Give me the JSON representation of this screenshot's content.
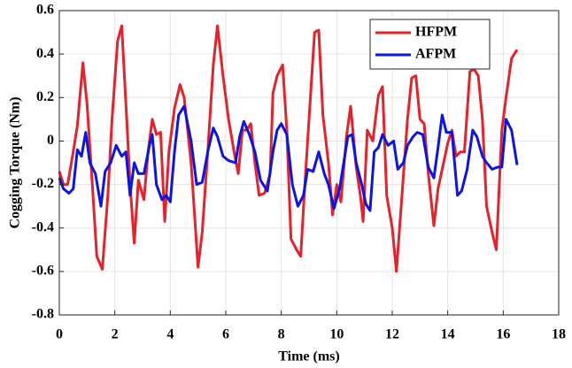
{
  "chart_data": {
    "type": "line",
    "xlabel": "Time (ms)",
    "ylabel": "Cogging Torque (Nm)",
    "xlim": [
      0,
      18
    ],
    "ylim": [
      -0.8,
      0.6
    ],
    "xticks": [
      0,
      2,
      4,
      6,
      8,
      10,
      12,
      14,
      16,
      18
    ],
    "yticks": [
      -0.8,
      -0.6,
      -0.4,
      -0.2,
      0,
      0.2,
      0.4,
      0.6
    ],
    "grid": true,
    "legend": "northeast",
    "series": [
      {
        "name": "HFPM",
        "color": "#e8202a",
        "x": [
          0,
          0.15,
          0.3,
          0.5,
          0.65,
          0.85,
          1.0,
          1.2,
          1.35,
          1.55,
          1.75,
          1.9,
          2.1,
          2.25,
          2.45,
          2.55,
          2.7,
          2.85,
          3.05,
          3.2,
          3.35,
          3.5,
          3.65,
          3.8,
          3.95,
          4.15,
          4.35,
          4.5,
          4.75,
          5.0,
          5.15,
          5.35,
          5.55,
          5.7,
          5.9,
          6.1,
          6.3,
          6.45,
          6.6,
          6.75,
          6.9,
          7.05,
          7.2,
          7.4,
          7.6,
          7.7,
          7.85,
          8.05,
          8.2,
          8.35,
          8.55,
          8.7,
          8.85,
          9.0,
          9.2,
          9.35,
          9.5,
          9.7,
          9.85,
          10.0,
          10.15,
          10.35,
          10.5,
          10.7,
          10.85,
          10.95,
          11.1,
          11.3,
          11.5,
          11.65,
          11.8,
          12.0,
          12.15,
          12.35,
          12.55,
          12.7,
          12.85,
          13.0,
          13.15,
          13.3,
          13.5,
          13.65,
          13.85,
          14.0,
          14.15,
          14.3,
          14.45,
          14.6,
          14.8,
          14.95,
          15.1,
          15.25,
          15.4,
          15.6,
          15.75,
          15.95,
          16.1,
          16.3,
          16.5
        ],
        "values": [
          -0.14,
          -0.2,
          -0.2,
          -0.05,
          0.07,
          0.36,
          0.17,
          -0.22,
          -0.53,
          -0.59,
          -0.25,
          0.1,
          0.46,
          0.53,
          0.05,
          -0.2,
          -0.47,
          -0.18,
          -0.27,
          -0.05,
          0.1,
          0.03,
          0.04,
          -0.37,
          -0.05,
          0.15,
          0.26,
          0.2,
          -0.1,
          -0.58,
          -0.42,
          -0.05,
          0.35,
          0.53,
          0.3,
          0.1,
          -0.05,
          -0.15,
          0.05,
          0.05,
          0.08,
          -0.1,
          -0.25,
          -0.24,
          -0.15,
          0.22,
          0.3,
          0.35,
          0.05,
          -0.45,
          -0.5,
          -0.53,
          -0.2,
          0.1,
          0.5,
          0.51,
          0.12,
          -0.1,
          -0.34,
          -0.2,
          -0.28,
          0.02,
          0.16,
          -0.12,
          -0.25,
          -0.37,
          0.05,
          0.0,
          0.21,
          0.25,
          -0.25,
          -0.4,
          -0.6,
          -0.25,
          0.1,
          0.29,
          0.3,
          0.1,
          0.08,
          -0.15,
          -0.39,
          -0.22,
          -0.1,
          -0.01,
          0.05,
          -0.07,
          -0.05,
          -0.05,
          0.32,
          0.33,
          0.3,
          0.1,
          -0.3,
          -0.42,
          -0.5,
          0.05,
          0.2,
          0.38,
          0.42
        ]
      },
      {
        "name": "AFPM",
        "color": "#0a14e6",
        "x": [
          0,
          0.15,
          0.35,
          0.5,
          0.65,
          0.8,
          0.95,
          1.1,
          1.3,
          1.5,
          1.65,
          1.85,
          2.05,
          2.25,
          2.4,
          2.55,
          2.7,
          2.85,
          3.05,
          3.25,
          3.35,
          3.5,
          3.7,
          3.85,
          4.0,
          4.15,
          4.3,
          4.5,
          4.75,
          4.95,
          5.15,
          5.35,
          5.55,
          5.7,
          5.9,
          6.1,
          6.35,
          6.5,
          6.65,
          6.85,
          7.05,
          7.25,
          7.5,
          7.7,
          7.85,
          8.0,
          8.2,
          8.4,
          8.6,
          8.8,
          8.95,
          9.15,
          9.35,
          9.55,
          9.7,
          9.9,
          10.1,
          10.25,
          10.4,
          10.55,
          10.7,
          10.9,
          11.05,
          11.2,
          11.35,
          11.5,
          11.65,
          11.85,
          12.05,
          12.2,
          12.4,
          12.55,
          12.75,
          12.9,
          13.1,
          13.3,
          13.5,
          13.65,
          13.8,
          13.95,
          14.15,
          14.35,
          14.5,
          14.7,
          14.9,
          15.05,
          15.25,
          15.4,
          15.6,
          15.8,
          15.95,
          16.1,
          16.3,
          16.5
        ],
        "values": [
          -0.17,
          -0.22,
          -0.24,
          -0.22,
          -0.04,
          -0.07,
          0.04,
          -0.1,
          -0.15,
          -0.3,
          -0.14,
          -0.1,
          -0.02,
          -0.07,
          -0.05,
          -0.25,
          -0.1,
          -0.15,
          -0.15,
          -0.02,
          0.03,
          -0.2,
          -0.27,
          -0.25,
          -0.28,
          -0.05,
          0.12,
          0.16,
          0.0,
          -0.2,
          -0.19,
          -0.05,
          0.06,
          0.02,
          -0.07,
          -0.09,
          -0.1,
          0.02,
          0.09,
          0.03,
          -0.05,
          -0.18,
          -0.23,
          -0.05,
          0.05,
          0.08,
          0.03,
          -0.2,
          -0.3,
          -0.25,
          -0.13,
          -0.14,
          -0.05,
          -0.15,
          -0.2,
          -0.31,
          -0.22,
          -0.1,
          0.02,
          0.03,
          -0.1,
          -0.2,
          -0.29,
          -0.32,
          -0.05,
          -0.03,
          0.03,
          -0.02,
          0.0,
          -0.13,
          -0.1,
          -0.02,
          0.02,
          0.04,
          0.03,
          -0.12,
          -0.17,
          -0.03,
          0.12,
          0.04,
          0.04,
          -0.25,
          -0.23,
          -0.13,
          0.05,
          0.02,
          -0.07,
          -0.1,
          -0.13,
          -0.12,
          -0.12,
          0.1,
          0.05,
          -0.11
        ]
      }
    ]
  }
}
